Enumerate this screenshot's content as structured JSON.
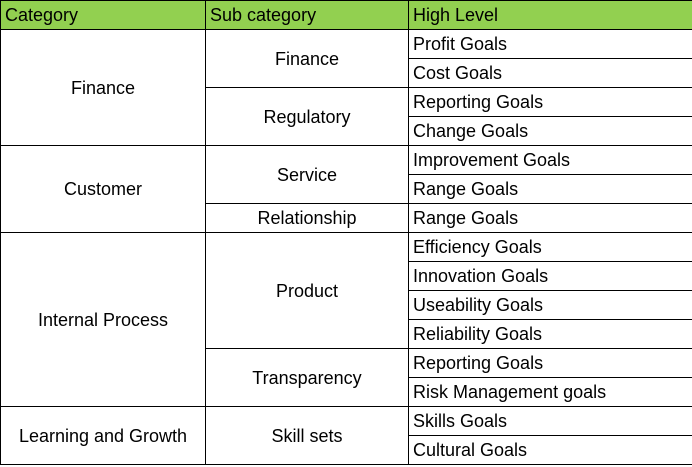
{
  "header": {
    "category": "Category",
    "sub_category": "Sub category",
    "high_level": "High Level"
  },
  "colors": {
    "header_bg": "#92d050",
    "border": "#000000"
  },
  "rows": {
    "finance": {
      "category": "Finance",
      "sub_finance": "Finance",
      "goals_finance": [
        "Profit Goals",
        "Cost Goals"
      ],
      "sub_regulatory": "Regulatory",
      "goals_regulatory": [
        "Reporting Goals",
        "Change Goals"
      ]
    },
    "customer": {
      "category": "Customer",
      "sub_service": "Service",
      "goals_service": [
        "Improvement Goals",
        "Range Goals"
      ],
      "sub_relationship": "Relationship",
      "goals_relationship": [
        "Range Goals"
      ]
    },
    "internal": {
      "category": "Internal Process",
      "sub_product": "Product",
      "goals_product": [
        "Efficiency Goals",
        "Innovation Goals",
        "Useability Goals",
        "Reliability Goals"
      ],
      "sub_transparency": "Transparency",
      "goals_transparency": [
        "Reporting Goals",
        "Risk Management goals"
      ]
    },
    "learning": {
      "category": "Learning and Growth",
      "sub_skill": "Skill sets",
      "goals_skill": [
        "Skills Goals",
        "Cultural Goals"
      ]
    }
  }
}
